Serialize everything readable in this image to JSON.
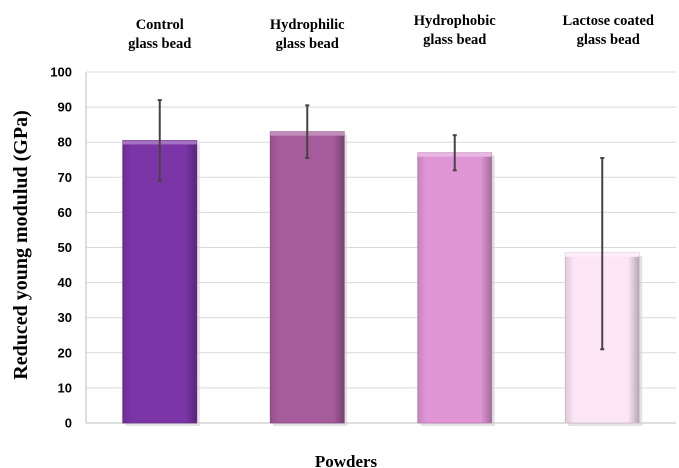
{
  "chart_data": {
    "type": "bar",
    "categories": [
      [
        "Control",
        "glass bead"
      ],
      [
        "Hydrophilic",
        "glass bead"
      ],
      [
        "Hydrophobic",
        "glass bead"
      ],
      [
        "Lactose coated",
        "glass bead"
      ]
    ],
    "values": [
      80.5,
      83,
      77,
      48.5
    ],
    "error_low": [
      69,
      75.5,
      72,
      21
    ],
    "error_high": [
      92,
      90.5,
      82,
      75.5
    ],
    "ylabel": "Reduced young modulud (GPa)",
    "xlabel": "Powders",
    "ylim": [
      0,
      100
    ],
    "yticks": [
      0,
      10,
      20,
      30,
      40,
      50,
      60,
      70,
      80,
      90,
      100
    ],
    "category_label_position": "top",
    "grid": "horizontal",
    "colors": [
      "#7b35a6",
      "#a65c9c",
      "#e096d6",
      "#fce6f6"
    ]
  }
}
